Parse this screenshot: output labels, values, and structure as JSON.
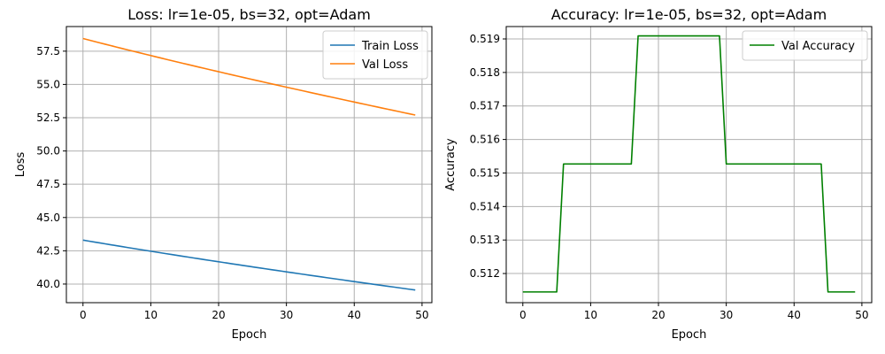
{
  "chart_data": [
    {
      "type": "line",
      "title": "Loss: lr=1e-05, bs=32, opt=Adam",
      "xlabel": "Epoch",
      "ylabel": "Loss",
      "xlim": [
        -2.45,
        51.45
      ],
      "ylim": [
        38.6,
        59.35
      ],
      "xticks": [
        0,
        10,
        20,
        30,
        40,
        50
      ],
      "xtick_labels": [
        "0",
        "10",
        "20",
        "30",
        "40",
        "50"
      ],
      "yticks": [
        40.0,
        42.5,
        45.0,
        47.5,
        50.0,
        52.5,
        55.0,
        57.5
      ],
      "ytick_labels": [
        "40.0",
        "42.5",
        "45.0",
        "47.5",
        "50.0",
        "52.5",
        "55.0",
        "57.5"
      ],
      "grid": true,
      "legend_position": "top-right",
      "series": [
        {
          "name": "Train Loss",
          "color": "#1f77b4",
          "x_start": 0,
          "x_end": 49,
          "y_start": 43.3,
          "y_end": 39.55,
          "curvature": "slightly convex"
        },
        {
          "name": "Val Loss",
          "color": "#ff7f0e",
          "x_start": 0,
          "x_end": 49,
          "y_start": 58.45,
          "y_end": 52.7,
          "curvature": "slightly convex"
        }
      ]
    },
    {
      "type": "line",
      "title": "Accuracy: lr=1e-05, bs=32, opt=Adam",
      "xlabel": "Epoch",
      "ylabel": "Accuracy",
      "xlim": [
        -2.45,
        51.45
      ],
      "ylim": [
        0.51113,
        0.51937
      ],
      "xticks": [
        0,
        10,
        20,
        30,
        40,
        50
      ],
      "xtick_labels": [
        "0",
        "10",
        "20",
        "30",
        "40",
        "50"
      ],
      "yticks": [
        0.512,
        0.513,
        0.514,
        0.515,
        0.516,
        0.517,
        0.518,
        0.519
      ],
      "ytick_labels": [
        "0.512",
        "0.513",
        "0.514",
        "0.515",
        "0.516",
        "0.517",
        "0.518",
        "0.519"
      ],
      "grid": true,
      "legend_position": "top-right",
      "series": [
        {
          "name": "Val Accuracy",
          "color": "#008000",
          "points": [
            [
              0,
              0.51145
            ],
            [
              5,
              0.51145
            ],
            [
              6,
              0.51527
            ],
            [
              16,
              0.51527
            ],
            [
              17,
              0.51909
            ],
            [
              29,
              0.51909
            ],
            [
              30,
              0.51527
            ],
            [
              44,
              0.51527
            ],
            [
              45,
              0.51145
            ],
            [
              49,
              0.51145
            ]
          ]
        }
      ]
    }
  ]
}
